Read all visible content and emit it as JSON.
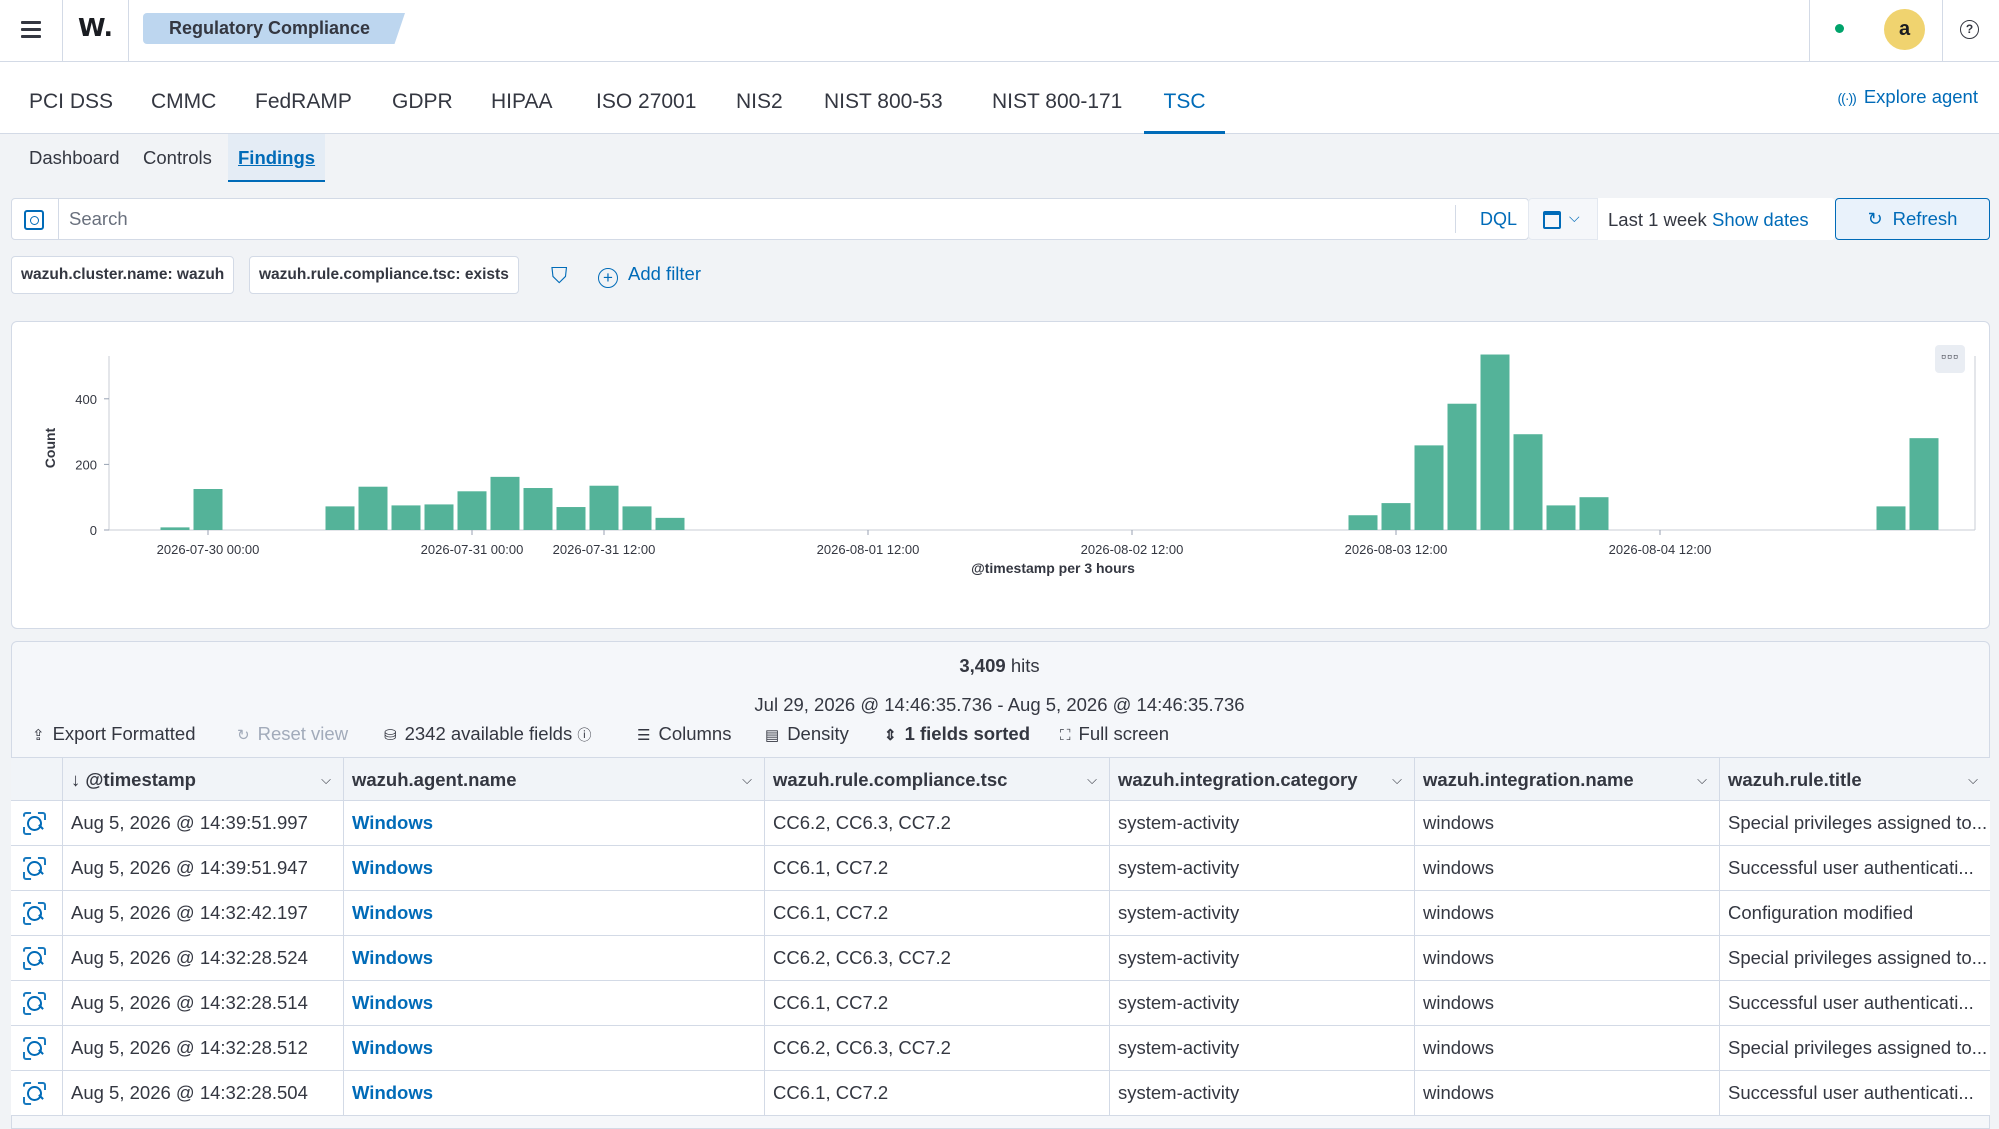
{
  "header": {
    "logo": "W.",
    "breadcrumb": "Regulatory Compliance",
    "avatar_letter": "a",
    "help": "?",
    "status_color": "#00a36b"
  },
  "compliance_tabs": [
    "PCI DSS",
    "CMMC",
    "FedRAMP",
    "GDPR",
    "HIPAA",
    "ISO 27001",
    "NIS2",
    "NIST 800-53",
    "NIST 800-171",
    "TSC"
  ],
  "active_compliance_tab": "TSC",
  "explore_agent": "Explore agent",
  "sub_tabs": [
    "Dashboard",
    "Controls",
    "Findings"
  ],
  "active_sub_tab": "Findings",
  "search": {
    "placeholder": "Search",
    "value": "",
    "language": "DQL",
    "range_label": "Last 1 week",
    "show_dates": "Show dates",
    "refresh": "Refresh"
  },
  "filters": {
    "pills": [
      "wazuh.cluster.name: wazuh",
      "wazuh.rule.compliance.tsc: exists"
    ],
    "add_filter": "Add filter"
  },
  "chart_data": {
    "type": "bar",
    "title": "",
    "xlabel": "@timestamp per 3 hours",
    "ylabel": "Count",
    "ylim": [
      0,
      500
    ],
    "yticks": [
      0,
      200,
      400
    ],
    "x_tick_labels": [
      "2026-07-30 00:00",
      "2026-07-31 00:00",
      "2026-07-31 12:00",
      "2026-08-01 12:00",
      "2026-08-02 12:00",
      "2026-08-03 12:00",
      "2026-08-04 12:00"
    ],
    "bucket": "3 hours",
    "x_start": "2026-07-29 15:00",
    "x_end": "2026-08-05 15:00",
    "bars": [
      {
        "x": "2026-07-29 21:00",
        "value": 8
      },
      {
        "x": "2026-07-30 00:00",
        "value": 125
      },
      {
        "x": "2026-07-30 12:00",
        "value": 72
      },
      {
        "x": "2026-07-30 15:00",
        "value": 132
      },
      {
        "x": "2026-07-30 18:00",
        "value": 75
      },
      {
        "x": "2026-07-30 21:00",
        "value": 78
      },
      {
        "x": "2026-07-31 00:00",
        "value": 118
      },
      {
        "x": "2026-07-31 03:00",
        "value": 162
      },
      {
        "x": "2026-07-31 06:00",
        "value": 128
      },
      {
        "x": "2026-07-31 09:00",
        "value": 70
      },
      {
        "x": "2026-07-31 12:00",
        "value": 135
      },
      {
        "x": "2026-07-31 15:00",
        "value": 72
      },
      {
        "x": "2026-07-31 18:00",
        "value": 37
      },
      {
        "x": "2026-08-03 09:00",
        "value": 45
      },
      {
        "x": "2026-08-03 12:00",
        "value": 82
      },
      {
        "x": "2026-08-03 15:00",
        "value": 258
      },
      {
        "x": "2026-08-03 18:00",
        "value": 385
      },
      {
        "x": "2026-08-03 21:00",
        "value": 535
      },
      {
        "x": "2026-08-04 00:00",
        "value": 292
      },
      {
        "x": "2026-08-04 03:00",
        "value": 75
      },
      {
        "x": "2026-08-04 06:00",
        "value": 100
      },
      {
        "x": "2026-08-05 09:00",
        "value": 72
      },
      {
        "x": "2026-08-05 12:00",
        "value": 280
      }
    ],
    "bar_color": "#54b399",
    "grid": false
  },
  "results": {
    "hits_count": "3,409",
    "hits_label": "hits",
    "range_text": "Jul 29, 2026 @ 14:46:35.736 - Aug 5, 2026 @ 14:46:35.736",
    "toolbar": {
      "export": "Export Formatted",
      "reset": "Reset view",
      "fields": "2342 available fields",
      "columns": "Columns",
      "density": "Density",
      "sorted": "1 fields sorted",
      "fullscreen": "Full screen"
    },
    "columns": [
      "@timestamp",
      "wazuh.agent.name",
      "wazuh.rule.compliance.tsc",
      "wazuh.integration.category",
      "wazuh.integration.name",
      "wazuh.rule.title"
    ],
    "rows": [
      [
        "Aug 5, 2026 @ 14:39:51.997",
        "Windows",
        "CC6.2, CC6.3, CC7.2",
        "system-activity",
        "windows",
        "Special privileges assigned to..."
      ],
      [
        "Aug 5, 2026 @ 14:39:51.947",
        "Windows",
        "CC6.1, CC7.2",
        "system-activity",
        "windows",
        "Successful user authenticati..."
      ],
      [
        "Aug 5, 2026 @ 14:32:42.197",
        "Windows",
        "CC6.1, CC7.2",
        "system-activity",
        "windows",
        "Configuration modified"
      ],
      [
        "Aug 5, 2026 @ 14:32:28.524",
        "Windows",
        "CC6.2, CC6.3, CC7.2",
        "system-activity",
        "windows",
        "Special privileges assigned to..."
      ],
      [
        "Aug 5, 2026 @ 14:32:28.514",
        "Windows",
        "CC6.1, CC7.2",
        "system-activity",
        "windows",
        "Successful user authenticati..."
      ],
      [
        "Aug 5, 2026 @ 14:32:28.512",
        "Windows",
        "CC6.2, CC6.3, CC7.2",
        "system-activity",
        "windows",
        "Special privileges assigned to..."
      ],
      [
        "Aug 5, 2026 @ 14:32:28.504",
        "Windows",
        "CC6.1, CC7.2",
        "system-activity",
        "windows",
        "Successful user authenticati..."
      ]
    ]
  }
}
